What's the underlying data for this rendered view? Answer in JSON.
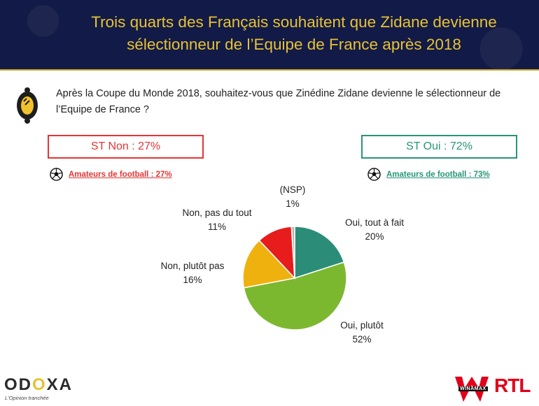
{
  "header": {
    "title": "Trois quarts des Français souhaitent que Zidane devienne sélectionneur de l’Equipe de France après 2018"
  },
  "question": "Après la Coupe du Monde 2018, souhaitez-vous que Zinédine Zidane devienne le sélectionneur de l’Equipe de France ?",
  "summary": {
    "st_non": "ST Non : 27%",
    "st_oui": "ST Oui : 72%",
    "fans_non": "Amateurs de football : 27%",
    "fans_oui": "Amateurs de football : 73%"
  },
  "colors": {
    "header_bg": "#121a47",
    "gold": "#e8c233",
    "non_red": "#e43534",
    "oui_green": "#279576"
  },
  "chart_data": {
    "type": "pie",
    "title": "",
    "slices": [
      {
        "name": "Oui, tout à fait",
        "value": 20,
        "label": "20%",
        "color": "#2b8d78"
      },
      {
        "name": "Oui, plutôt",
        "value": 52,
        "label": "52%",
        "color": "#7cb82f"
      },
      {
        "name": "Non, plutôt pas",
        "value": 16,
        "label": "16%",
        "color": "#efb10d"
      },
      {
        "name": "Non, pas du tout",
        "value": 11,
        "label": "11%",
        "color": "#e71c1d"
      },
      {
        "name": "(NSP)",
        "value": 1,
        "label": "1%",
        "color": "#b7b7b7"
      }
    ],
    "start": "12 o'clock",
    "direction": "clockwise"
  },
  "footer": {
    "odoxa_main": "OD",
    "odoxa_o": "O",
    "odoxa_rest": "XA",
    "odoxa_tagline": "L'Opinion tranchée",
    "winamax": "WINAMAX",
    "rtl": "RTL"
  }
}
